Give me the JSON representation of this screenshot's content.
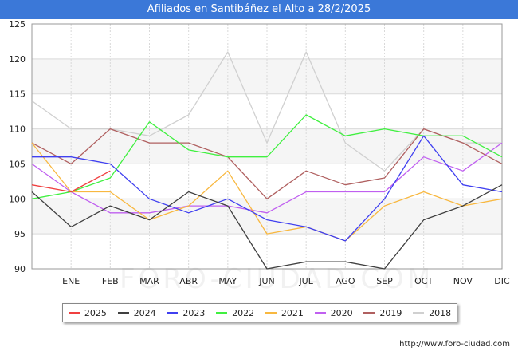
{
  "title": "Afiliados en Santibáñez el Alto a 28/2/2025",
  "source": "http://www.foro-ciudad.com",
  "watermark": "FORO-CIUDAD.COM",
  "colors": {
    "title_bg": "#3b78d8",
    "plot_bg": "#f5f5f5",
    "grid": "#d9d9d9"
  },
  "chart_data": {
    "type": "line",
    "title": "Afiliados en Santibáñez el Alto a 28/2/2025",
    "categories": [
      "",
      "ENE",
      "FEB",
      "MAR",
      "ABR",
      "MAY",
      "JUN",
      "JUL",
      "AGO",
      "SEP",
      "OCT",
      "NOV",
      "DIC"
    ],
    "ylim": [
      90,
      125
    ],
    "yticks": [
      90,
      95,
      100,
      105,
      110,
      115,
      120,
      125
    ],
    "grid": true,
    "legend_position": "bottom",
    "series": [
      {
        "name": "2025",
        "color": "#f04040",
        "values": [
          102,
          101,
          104,
          null,
          null,
          null,
          null,
          null,
          null,
          null,
          null,
          null,
          null
        ]
      },
      {
        "name": "2024",
        "color": "#404040",
        "values": [
          101,
          96,
          99,
          97,
          101,
          99,
          90,
          91,
          91,
          90,
          97,
          99,
          102
        ]
      },
      {
        "name": "2023",
        "color": "#4040f0",
        "values": [
          106,
          106,
          105,
          100,
          98,
          100,
          97,
          96,
          94,
          100,
          109,
          102,
          101
        ]
      },
      {
        "name": "2022",
        "color": "#40f040",
        "values": [
          100,
          101,
          103,
          111,
          107,
          106,
          106,
          112,
          109,
          110,
          109,
          109,
          106
        ]
      },
      {
        "name": "2021",
        "color": "#f8b840",
        "values": [
          108,
          101,
          101,
          97,
          99,
          104,
          95,
          96,
          94,
          99,
          101,
          99,
          100
        ]
      },
      {
        "name": "2020",
        "color": "#c060f0",
        "values": [
          105,
          101,
          98,
          98,
          99,
          99,
          98,
          101,
          101,
          101,
          106,
          104,
          108
        ]
      },
      {
        "name": "2019",
        "color": "#b06060",
        "values": [
          108,
          105,
          110,
          108,
          108,
          106,
          100,
          104,
          102,
          103,
          110,
          108,
          105
        ]
      },
      {
        "name": "2018",
        "color": "#d0d0d0",
        "values": [
          114,
          110,
          110,
          109,
          112,
          121,
          108,
          121,
          108,
          104,
          110,
          108,
          108
        ]
      }
    ]
  }
}
